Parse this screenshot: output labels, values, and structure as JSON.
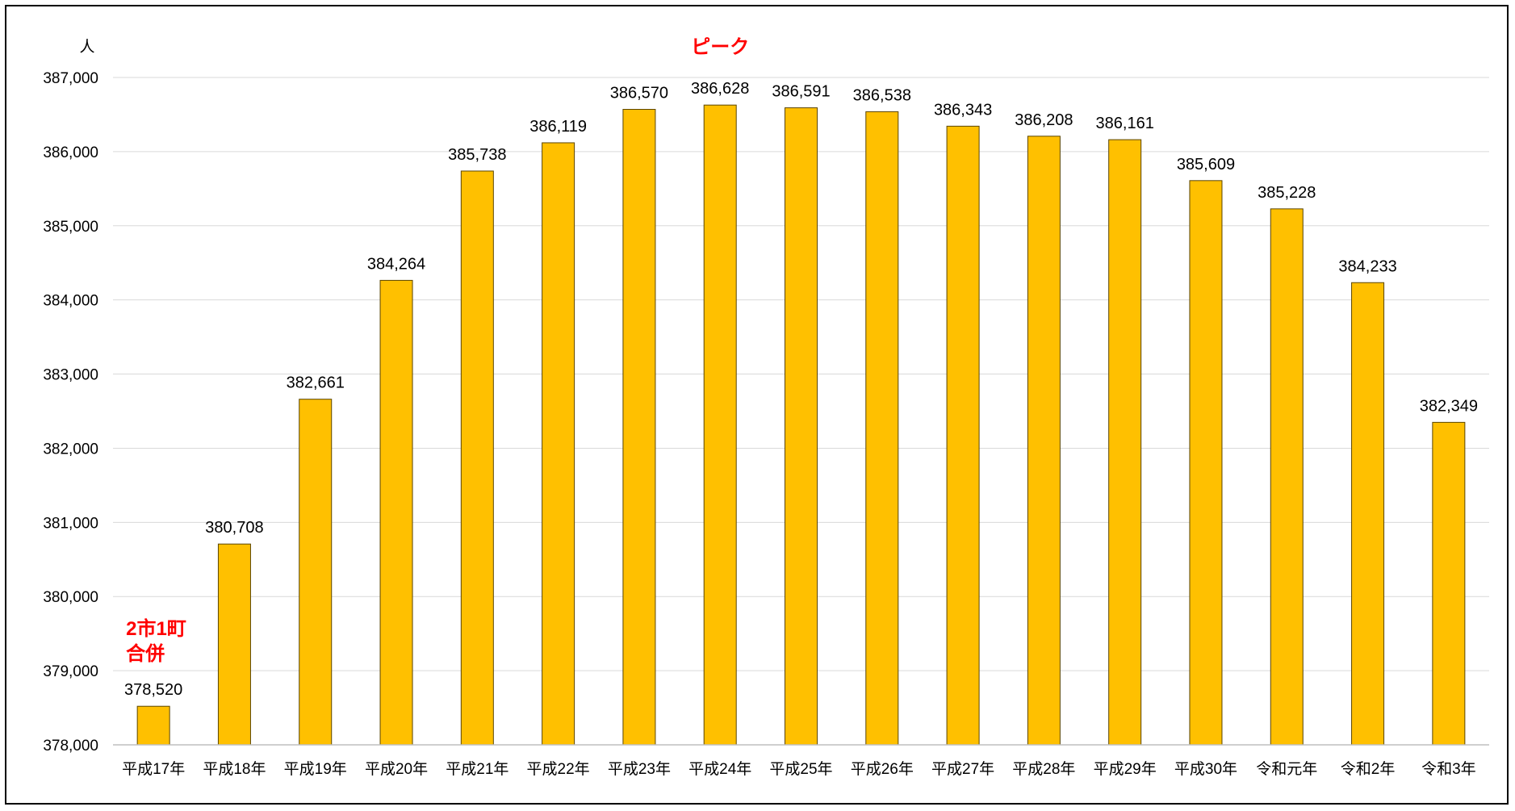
{
  "chart_data": {
    "type": "bar",
    "title": "",
    "xlabel": "",
    "ylabel": "人",
    "ylim": [
      378000,
      387000
    ],
    "yticks": [
      378000,
      379000,
      380000,
      381000,
      382000,
      383000,
      384000,
      385000,
      386000,
      387000
    ],
    "ytick_labels": [
      "378,000",
      "379,000",
      "380,000",
      "381,000",
      "382,000",
      "383,000",
      "384,000",
      "385,000",
      "386,000",
      "387,000"
    ],
    "grid": true,
    "legend": "none",
    "bar_color": "#FFC000",
    "bar_edge_color": "#5a4500",
    "categories": [
      "平成17年",
      "平成18年",
      "平成19年",
      "平成20年",
      "平成21年",
      "平成22年",
      "平成23年",
      "平成24年",
      "平成25年",
      "平成26年",
      "平成27年",
      "平成28年",
      "平成29年",
      "平成30年",
      "令和元年",
      "令和2年",
      "令和3年"
    ],
    "values": [
      378520,
      380708,
      382661,
      384264,
      385738,
      386119,
      386570,
      386628,
      386591,
      386538,
      386343,
      386208,
      386161,
      385609,
      385228,
      384233,
      382349
    ],
    "value_labels": [
      "378,520",
      "380,708",
      "382,661",
      "384,264",
      "385,738",
      "386,119",
      "386,570",
      "386,628",
      "386,591",
      "386,538",
      "386,343",
      "386,208",
      "386,161",
      "385,609",
      "385,228",
      "384,233",
      "382,349"
    ],
    "annotations": [
      {
        "category": "平成24年",
        "lines": [
          "ピーク"
        ],
        "color": "#FF0000"
      },
      {
        "category": "平成17年",
        "lines": [
          "2市1町",
          "合併"
        ],
        "color": "#FF0000"
      }
    ]
  }
}
